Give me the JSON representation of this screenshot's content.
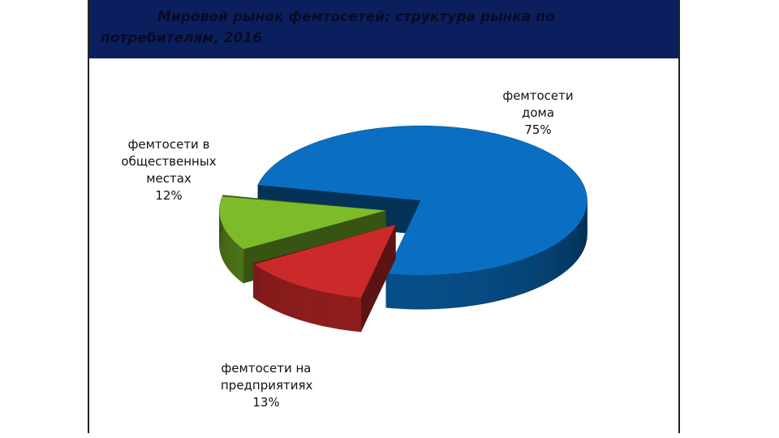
{
  "chart_data": {
    "type": "pie",
    "title": "Мировой рынок фемтосетей: структура рынка по потребителям, 2016",
    "categories": [
      "фемтосети дома",
      "фемтосети на предприятиях",
      "фемтосети в общественных местах"
    ],
    "values": [
      75,
      13,
      12
    ],
    "value_labels": [
      "75%",
      "13%",
      "12%"
    ],
    "colors": [
      "#0a6fc2",
      "#cc2a2a",
      "#7dbb2a"
    ]
  }
}
